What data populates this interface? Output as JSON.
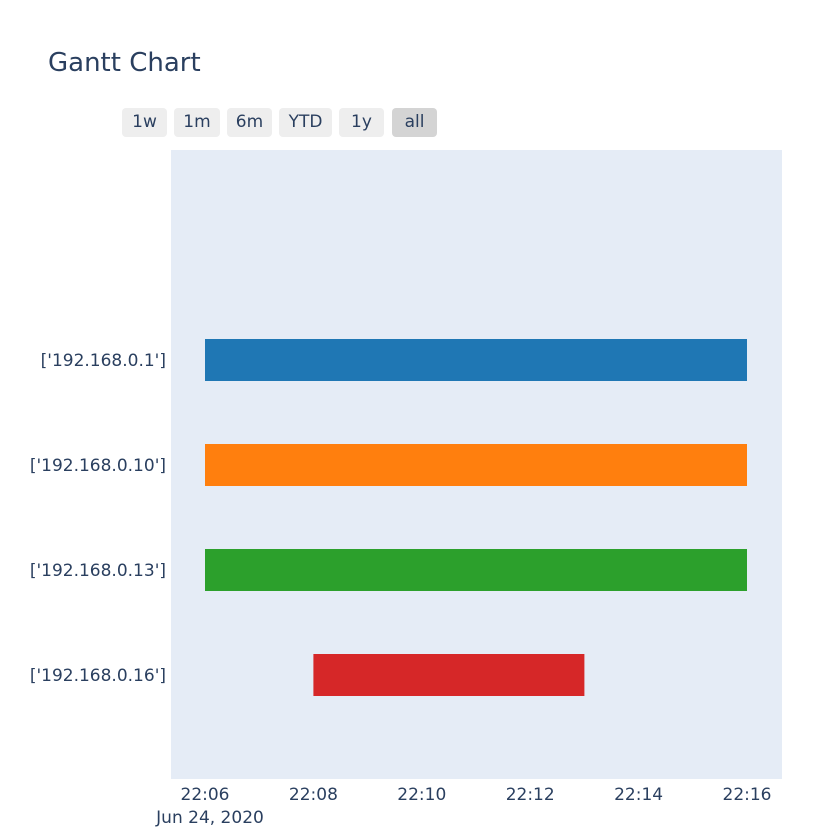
{
  "chart_data": {
    "type": "gantt",
    "title": "Gantt Chart",
    "range_selector": {
      "buttons": [
        "1w",
        "1m",
        "6m",
        "YTD",
        "1y",
        "all"
      ],
      "active": "all"
    },
    "xaxis": {
      "ticks": [
        "22:06",
        "22:08",
        "22:10",
        "22:12",
        "22:14",
        "22:16"
      ],
      "tick_minutes": [
        0,
        2,
        4,
        6,
        8,
        10
      ],
      "date_label": "Jun 24, 2020",
      "start": "2020-06-24 22:06",
      "range": [
        "2020-06-24 21:59:30",
        "2020-06-24 22:16:40"
      ]
    },
    "tasks": [
      {
        "label": "['192.168.0.1']",
        "start": "2020-06-24 22:06:00",
        "end": "2020-06-24 22:16:00",
        "color": "#1f77b4"
      },
      {
        "label": "['192.168.0.10']",
        "start": "2020-06-24 22:06:00",
        "end": "2020-06-24 22:16:00",
        "color": "#ff7f0e"
      },
      {
        "label": "['192.168.0.13']",
        "start": "2020-06-24 22:06:00",
        "end": "2020-06-24 22:16:00",
        "color": "#2ca02c"
      },
      {
        "label": "['192.168.0.16']",
        "start": "2020-06-24 22:08:00",
        "end": "2020-06-24 22:13:00",
        "color": "#d62728"
      }
    ],
    "plot_bgcolor": "#e5ecf6",
    "grid": false
  }
}
